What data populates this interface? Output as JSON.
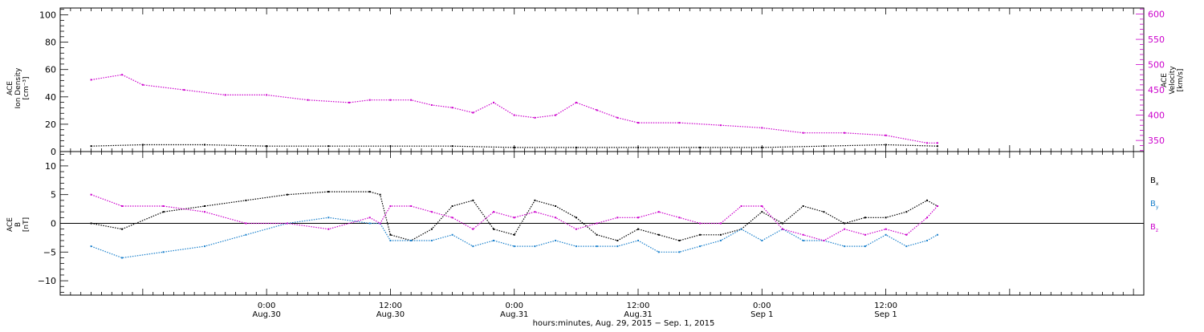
{
  "chart_data": [
    {
      "type": "scatter",
      "panel": "top",
      "ylabel_left": [
        "ACE",
        "Ion Density",
        "[cm⁻³]"
      ],
      "ylabel_right": [
        "ACE",
        "Velocity",
        "[km/s]"
      ],
      "ylim_left": [
        0,
        105
      ],
      "yticks_left": [
        "0",
        "20",
        "40",
        "60",
        "80",
        "100"
      ],
      "ylim_right": [
        328,
        612
      ],
      "yticks_right": [
        "350",
        "400",
        "450",
        "500",
        "550",
        "600"
      ],
      "series": [
        {
          "axis": "left",
          "color": "#000000",
          "x": [
            -17,
            -12,
            -6,
            0,
            6,
            12,
            18,
            24,
            30,
            36,
            42,
            48,
            54,
            60,
            65
          ],
          "y": [
            4,
            5,
            5,
            4,
            4,
            4,
            4,
            3,
            3,
            3,
            3,
            3,
            4,
            5,
            4
          ]
        },
        {
          "axis": "right",
          "color": "#cc00cc",
          "x": [
            -17,
            -14,
            -12,
            -8,
            -4,
            0,
            4,
            8,
            10,
            12,
            14,
            16,
            18,
            20,
            22,
            24,
            26,
            28,
            30,
            32,
            34,
            36,
            40,
            44,
            48,
            52,
            56,
            60,
            64,
            65
          ],
          "y": [
            470,
            480,
            460,
            450,
            440,
            440,
            430,
            425,
            430,
            430,
            430,
            420,
            415,
            405,
            425,
            400,
            395,
            400,
            425,
            410,
            395,
            385,
            385,
            380,
            375,
            365,
            365,
            360,
            345,
            345
          ]
        }
      ]
    },
    {
      "type": "scatter",
      "panel": "bottom",
      "ylabel_left": [
        "ACE",
        "B",
        "[nT]"
      ],
      "ylim": [
        -12.5,
        12.5
      ],
      "yticks": [
        "−10",
        "−5",
        "0",
        "5",
        "10"
      ],
      "legend": [
        "Bx",
        "By",
        "Bz"
      ],
      "legend_position": "right",
      "series": [
        {
          "name": "Bx",
          "color": "#000000",
          "x": [
            -17,
            -14,
            -10,
            -6,
            -2,
            2,
            6,
            10,
            11,
            12,
            14,
            16,
            18,
            20,
            22,
            24,
            26,
            28,
            30,
            32,
            34,
            36,
            38,
            40,
            42,
            44,
            46,
            48,
            50,
            52,
            54,
            56,
            58,
            60,
            62,
            64,
            65
          ],
          "y": [
            0,
            -1,
            2,
            3,
            4,
            5,
            5.5,
            5.5,
            5,
            -2,
            -3,
            -1,
            3,
            4,
            -1,
            -2,
            4,
            3,
            1,
            -2,
            -3,
            -1,
            -2,
            -3,
            -2,
            -2,
            -1,
            2,
            0,
            3,
            2,
            0,
            1,
            1,
            2,
            4,
            3
          ]
        },
        {
          "name": "By",
          "color": "#1a80cc",
          "x": [
            -17,
            -14,
            -10,
            -6,
            -2,
            2,
            6,
            10,
            11,
            12,
            14,
            16,
            18,
            20,
            22,
            24,
            26,
            28,
            30,
            32,
            34,
            36,
            38,
            40,
            42,
            44,
            46,
            48,
            50,
            52,
            54,
            56,
            58,
            60,
            62,
            64,
            65
          ],
          "y": [
            -4,
            -6,
            -5,
            -4,
            -2,
            0,
            1,
            0,
            0,
            -3,
            -3,
            -3,
            -2,
            -4,
            -3,
            -4,
            -4,
            -3,
            -4,
            -4,
            -4,
            -3,
            -5,
            -5,
            -4,
            -3,
            -1,
            -3,
            -1,
            -3,
            -3,
            -4,
            -4,
            -2,
            -4,
            -3,
            -2
          ]
        },
        {
          "name": "Bz",
          "color": "#cc00cc",
          "x": [
            -17,
            -14,
            -10,
            -6,
            -2,
            2,
            6,
            10,
            11,
            12,
            14,
            16,
            18,
            20,
            22,
            24,
            26,
            28,
            30,
            32,
            34,
            36,
            38,
            40,
            42,
            44,
            46,
            48,
            50,
            52,
            54,
            56,
            58,
            60,
            62,
            64,
            65
          ],
          "y": [
            5,
            3,
            3,
            2,
            0,
            0,
            -1,
            1,
            0,
            3,
            3,
            2,
            1,
            -1,
            2,
            1,
            2,
            1,
            -1,
            0,
            1,
            1,
            2,
            1,
            0,
            0,
            3,
            3,
            -1,
            -2,
            -3,
            -1,
            -2,
            -1,
            -2,
            1,
            3
          ]
        }
      ]
    }
  ],
  "x_axis": {
    "xlim": [
      -20,
      85
    ],
    "ticks": [
      {
        "x": 0,
        "line1": "0:00",
        "line2": "Aug.30"
      },
      {
        "x": 12,
        "line1": "12:00",
        "line2": "Aug.30"
      },
      {
        "x": 24,
        "line1": "0:00",
        "line2": "Aug.31"
      },
      {
        "x": 36,
        "line1": "12:00",
        "line2": "Aug.31"
      },
      {
        "x": 48,
        "line1": "0:00",
        "line2": "Sep 1"
      },
      {
        "x": 60,
        "line1": "12:00",
        "line2": "Sep 1"
      }
    ],
    "title": "hours:minutes, Aug. 29, 2015 − Sep.  1, 2015"
  }
}
